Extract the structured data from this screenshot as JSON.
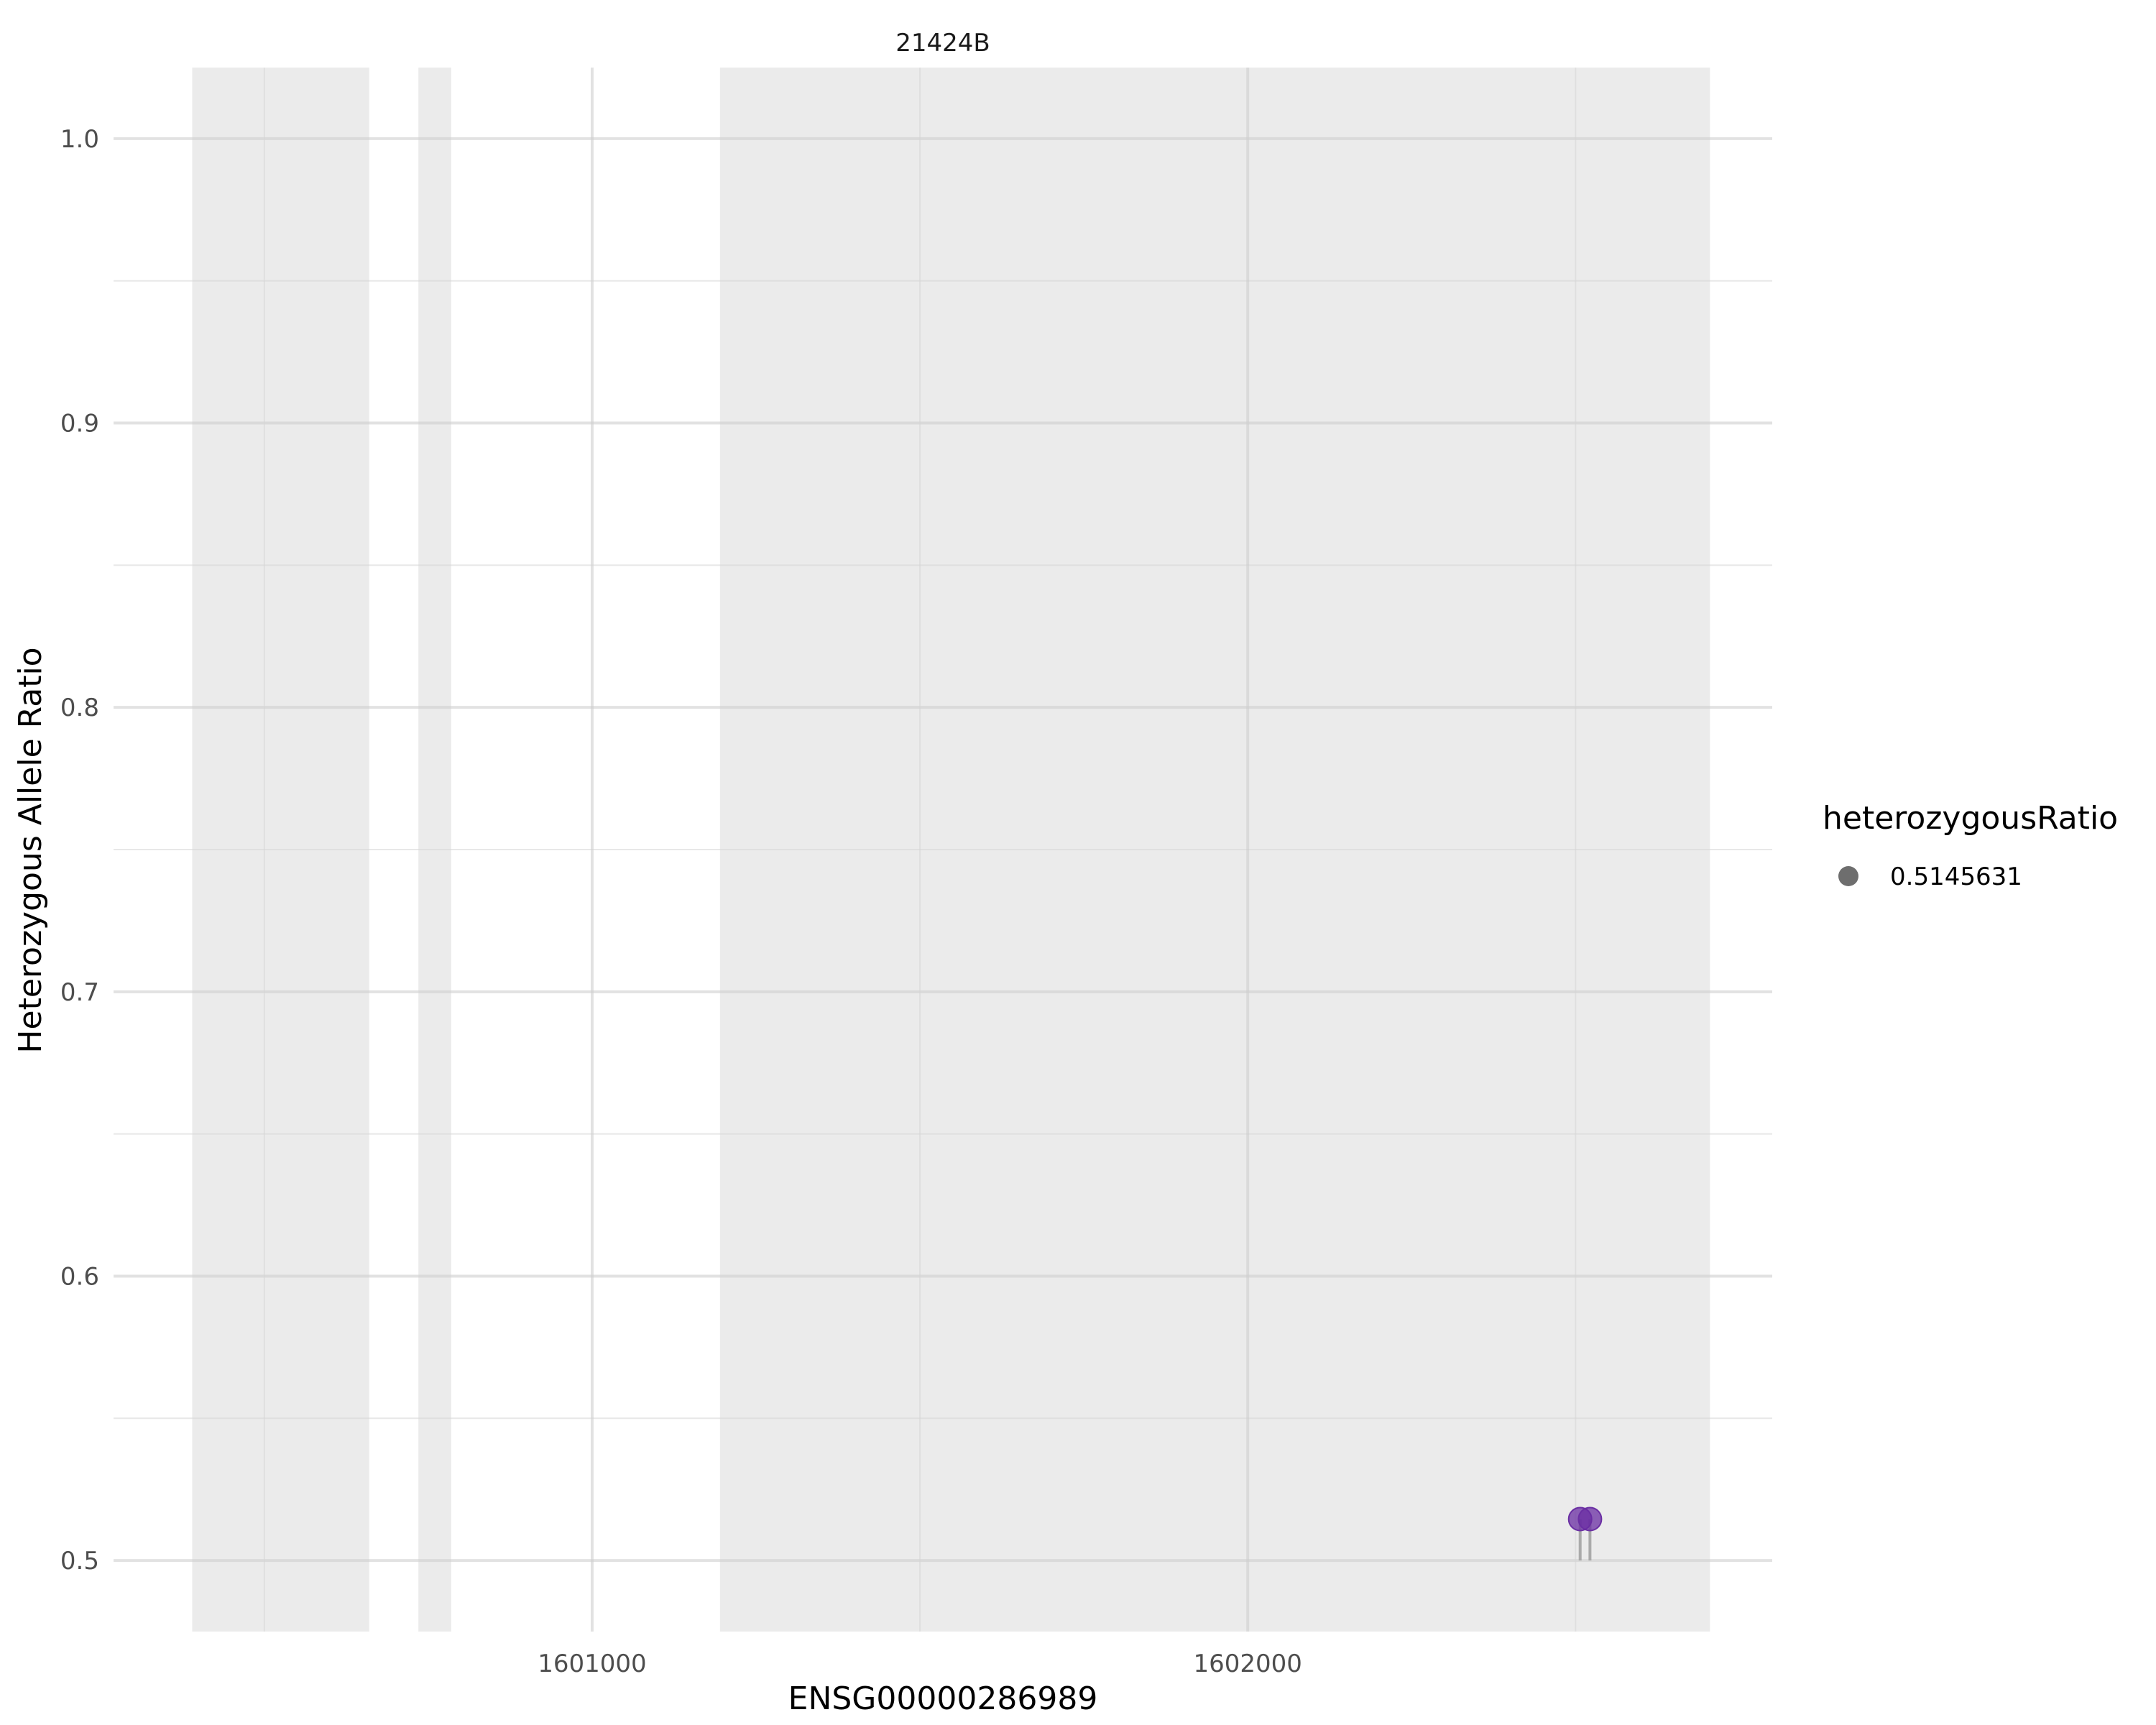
{
  "chart_data": {
    "type": "scatter",
    "facet_title": "21424B",
    "xlabel": "ENSG00000286989",
    "ylabel": "Heterozygous Allele Ratio",
    "xlim": [
      1600270,
      1602800
    ],
    "ylim": [
      0.475,
      1.025
    ],
    "x_ticks": [
      {
        "value": 1601000,
        "label": "1601000"
      },
      {
        "value": 1602000,
        "label": "1602000"
      }
    ],
    "x_minor_ticks": [
      1600500,
      1601500,
      1602500
    ],
    "y_ticks": [
      {
        "value": 0.5,
        "label": "0.5"
      },
      {
        "value": 0.6,
        "label": "0.6"
      },
      {
        "value": 0.7,
        "label": "0.7"
      },
      {
        "value": 0.8,
        "label": "0.8"
      },
      {
        "value": 0.9,
        "label": "0.9"
      },
      {
        "value": 1.0,
        "label": "1.0"
      }
    ],
    "y_minor_ticks": [
      0.55,
      0.65,
      0.75,
      0.85,
      0.95
    ],
    "grid": true,
    "shaded_regions": [
      {
        "start": 1600390,
        "end": 1600660
      },
      {
        "start": 1600735,
        "end": 1600785
      },
      {
        "start": 1601195,
        "end": 1602705
      }
    ],
    "points": [
      {
        "x": 1602507,
        "y": 0.5145631
      },
      {
        "x": 1602522,
        "y": 0.5145631
      }
    ],
    "baseline": 0.5,
    "point_color": "#6a2ea3",
    "region_color": "#ebebeb",
    "legend": {
      "title": "heterozygousRatio",
      "items": [
        {
          "label": "0.5145631",
          "color": "#555555"
        }
      ],
      "position": "right"
    }
  }
}
